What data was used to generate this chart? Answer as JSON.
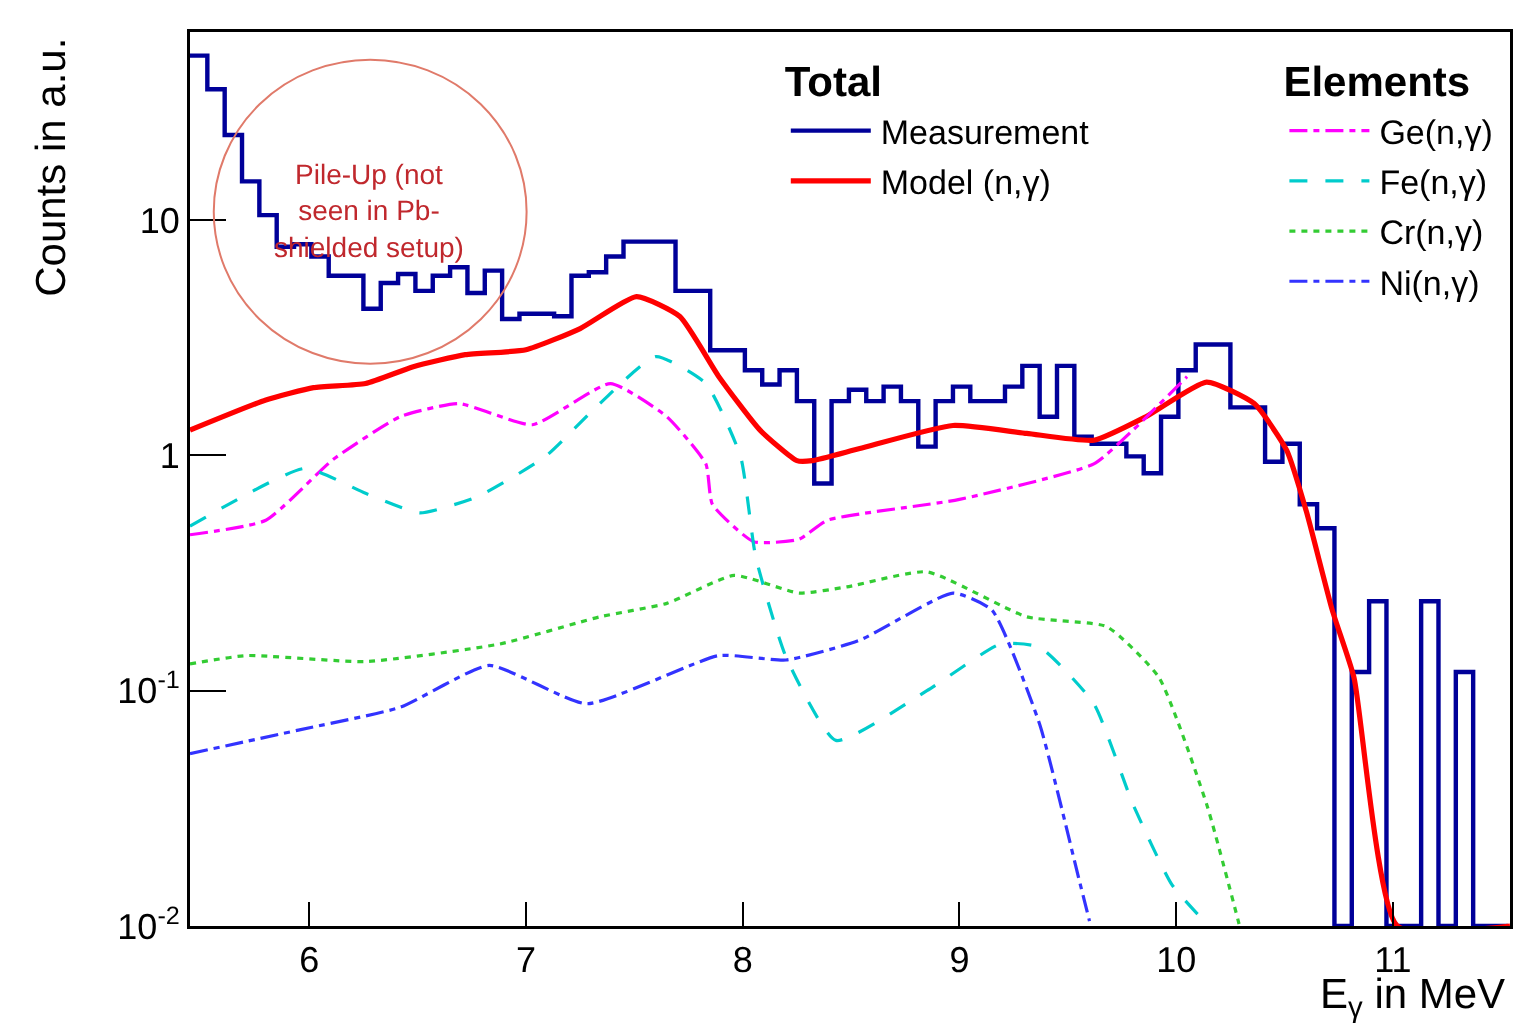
{
  "chart_data": {
    "type": "line",
    "xlabel": "E$_{γ}$ in MeV",
    "ylabel": "Counts in a.u.",
    "legend_title": "Total",
    "annotations": [
      "Pile-Up (not seen in Pb-shielded setup)",
      "Elements"
    ],
    "xlim": [
      5.45,
      11.54
    ],
    "xticks": [
      6,
      7,
      8,
      9,
      10,
      11
    ],
    "ylim": [
      0.01,
      63
    ],
    "yticks": [
      {
        "value": 0.01,
        "label": "10$^{-2}$"
      },
      {
        "value": 0.1,
        "label": "10$^{-1}$"
      },
      1,
      10
    ],
    "log": "y",
    "grid": false,
    "legend": "top right",
    "marker": "none",
    "series": [
      {
        "name": "Measurement",
        "type": "step",
        "color": "#000099",
        "x": [
          5.45,
          5.53,
          5.61,
          5.69,
          5.77,
          5.85,
          5.93,
          6.01,
          6.09,
          6.17,
          6.25,
          6.33,
          6.41,
          6.49,
          6.57,
          6.65,
          6.73,
          6.81,
          6.89,
          6.97,
          7.05,
          7.13,
          7.21,
          7.29,
          7.37,
          7.45,
          7.53,
          7.61,
          7.69,
          7.77,
          7.85,
          7.93,
          8.01,
          8.09,
          8.17,
          8.25,
          8.33,
          8.41,
          8.49,
          8.57,
          8.65,
          8.73,
          8.81,
          8.89,
          8.97,
          9.05,
          9.13,
          9.21,
          9.29,
          9.37,
          9.45,
          9.53,
          9.61,
          9.69,
          9.77,
          9.85,
          9.93,
          10.01,
          10.09,
          10.17,
          10.25,
          10.33,
          10.41,
          10.49,
          10.57,
          10.65,
          10.73,
          10.81,
          10.89,
          10.97,
          11.05,
          11.13,
          11.21,
          11.29,
          11.37,
          11.45,
          11.53
        ],
        "values": [
          50,
          36,
          23,
          14.6,
          10.5,
          7.7,
          7.9,
          7.0,
          5.8,
          5.8,
          4.2,
          5.4,
          5.9,
          5.0,
          5.8,
          6.3,
          4.9,
          6.1,
          3.8,
          4.0,
          4.0,
          3.9,
          5.8,
          6.0,
          7.0,
          8.1,
          8.1,
          8.1,
          5.0,
          5.0,
          2.8,
          2.8,
          2.3,
          2.0,
          2.3,
          1.7,
          0.76,
          1.7,
          1.9,
          1.7,
          1.96,
          1.7,
          1.09,
          1.7,
          1.96,
          1.7,
          1.7,
          1.96,
          2.4,
          1.46,
          2.4,
          1.2,
          1.12,
          1.12,
          0.99,
          0.84,
          1.46,
          2.3,
          2.96,
          2.96,
          1.6,
          1.6,
          0.94,
          1.12,
          0.62,
          0.49,
          0.01,
          0.12,
          0.24,
          0.01,
          0.01,
          0.24,
          0.01,
          0.12,
          0.01,
          0.01,
          0.01
        ]
      },
      {
        "name": "Model (n,γ)",
        "line_style": "solid",
        "color": "#ff0000",
        "x": [
          5.45,
          5.8,
          6.02,
          6.26,
          6.48,
          6.72,
          7.0,
          7.25,
          7.51,
          7.71,
          7.89,
          8.08,
          8.25,
          8.32,
          8.54,
          8.97,
          9.31,
          9.62,
          9.86,
          10.14,
          10.36,
          10.51,
          10.6,
          10.72,
          10.82,
          11.02,
          11.54
        ],
        "values": [
          1.28,
          1.72,
          1.94,
          2.02,
          2.38,
          2.68,
          2.81,
          3.46,
          4.73,
          3.89,
          2.16,
          1.28,
          0.95,
          0.95,
          1.07,
          1.34,
          1.24,
          1.16,
          1.46,
          2.05,
          1.66,
          1.05,
          0.58,
          0.22,
          0.114,
          0.01,
          0.01
        ]
      },
      {
        "name": "Ge(n,γ)",
        "line_style": "dashdot",
        "color": "#ff00ff",
        "x": [
          5.45,
          5.8,
          6.11,
          6.42,
          6.69,
          7.03,
          7.39,
          7.65,
          7.83,
          7.86,
          8.05,
          8.26,
          8.39,
          9.0,
          9.62,
          9.8,
          10.05
        ],
        "values": [
          0.46,
          0.53,
          0.96,
          1.46,
          1.66,
          1.35,
          2.02,
          1.46,
          0.92,
          0.62,
          0.43,
          0.44,
          0.53,
          0.65,
          0.92,
          1.28,
          2.16
        ]
      },
      {
        "name": "Fe(n,γ)",
        "line_style": "dashed",
        "color": "#00cccc",
        "x": [
          5.45,
          5.98,
          6.26,
          6.51,
          6.78,
          7.09,
          7.34,
          7.6,
          7.83,
          7.99,
          8.06,
          8.2,
          8.43,
          8.85,
          9.19,
          9.37,
          9.62,
          9.8,
          9.98,
          10.15
        ],
        "values": [
          0.5,
          0.88,
          0.69,
          0.57,
          0.67,
          0.99,
          1.66,
          2.63,
          2.02,
          0.99,
          0.37,
          0.139,
          0.0615,
          0.1,
          0.158,
          0.153,
          0.088,
          0.033,
          0.015,
          0.01
        ]
      },
      {
        "name": "Cr(n,γ)",
        "line_style": "dotted",
        "color": "#33cc33",
        "x": [
          5.45,
          5.71,
          6.26,
          6.88,
          7.34,
          7.65,
          7.96,
          8.26,
          8.48,
          8.85,
          9.31,
          9.68,
          9.92,
          10.14,
          10.29
        ],
        "values": [
          0.13,
          0.141,
          0.133,
          0.158,
          0.206,
          0.235,
          0.309,
          0.26,
          0.276,
          0.32,
          0.206,
          0.187,
          0.114,
          0.033,
          0.0102
        ]
      },
      {
        "name": "Ni(n,γ)",
        "line_style": "dashdot",
        "color": "#3333ff",
        "x": [
          5.45,
          5.95,
          6.42,
          6.83,
          7.28,
          7.89,
          8.2,
          8.54,
          8.97,
          9.15,
          9.37,
          9.55,
          9.6
        ],
        "values": [
          0.054,
          0.068,
          0.085,
          0.128,
          0.088,
          0.141,
          0.135,
          0.164,
          0.26,
          0.22,
          0.072,
          0.016,
          0.0105
        ]
      }
    ]
  }
}
